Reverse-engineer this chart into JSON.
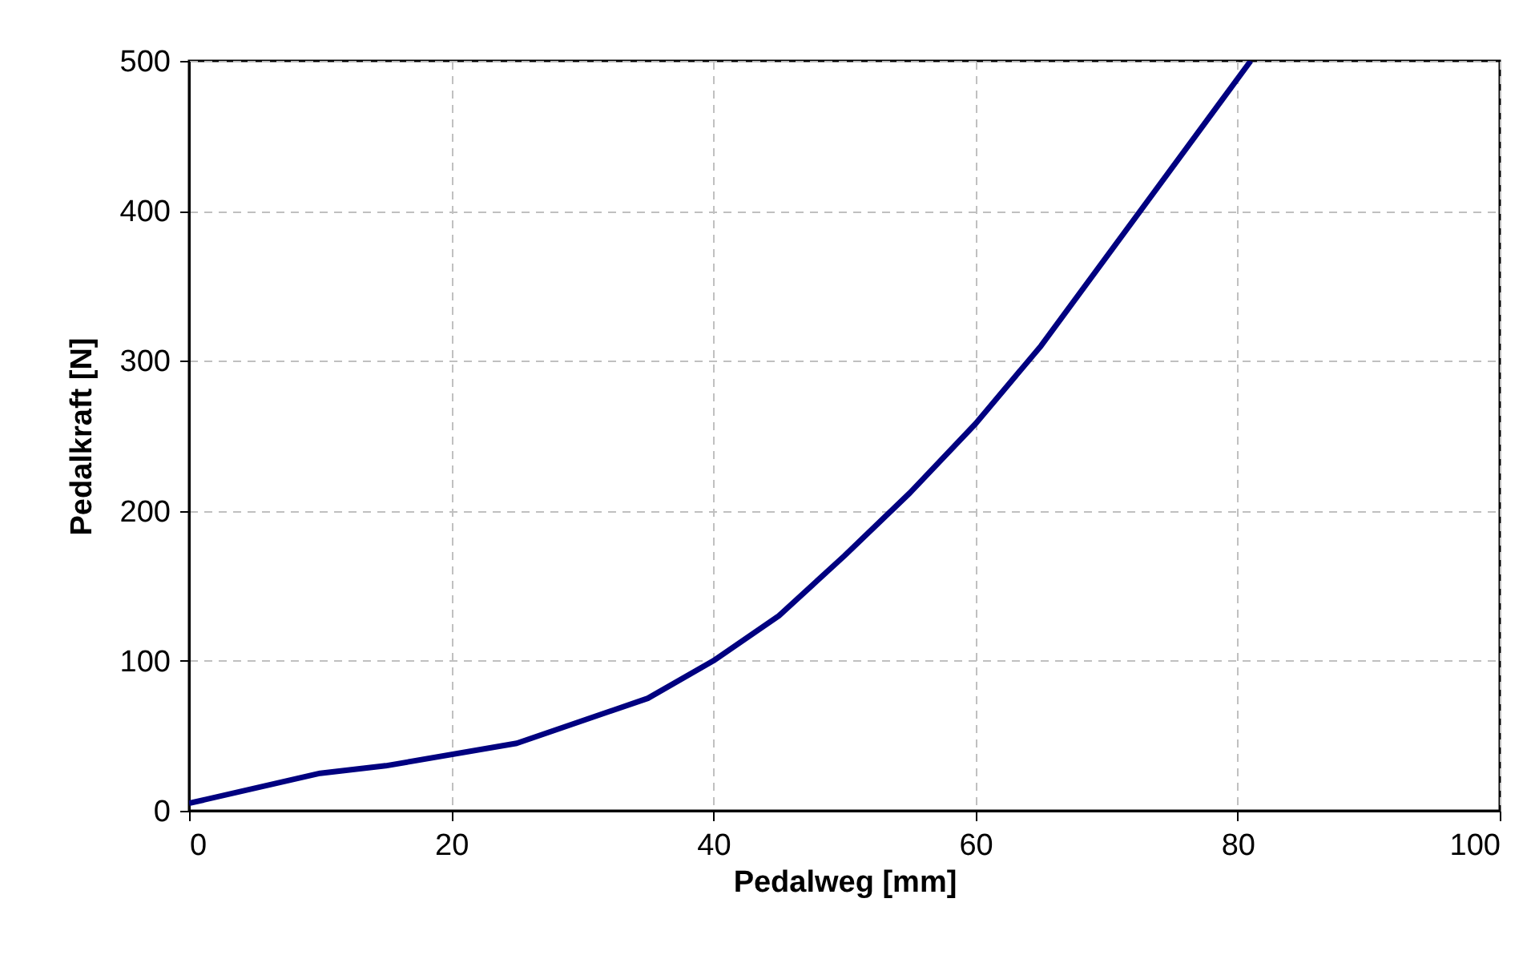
{
  "chart_data": {
    "type": "line",
    "xlabel": "Pedalweg [mm]",
    "ylabel": "Pedalkraft [N]",
    "x": [
      0,
      10,
      15,
      25,
      35,
      40,
      45,
      50,
      55,
      60,
      65,
      81
    ],
    "series": [
      {
        "color": "#000080",
        "values": [
          5,
          25,
          30,
          45,
          75,
          100,
          130,
          170,
          212,
          258,
          310,
          500
        ]
      }
    ],
    "xlim": [
      0,
      100
    ],
    "ylim": [
      0,
      500
    ],
    "xticks": [
      0,
      20,
      40,
      60,
      80,
      100
    ],
    "yticks": [
      0,
      100,
      200,
      300,
      400,
      500
    ],
    "grid": true,
    "marker": "none",
    "line_style": "solid"
  }
}
